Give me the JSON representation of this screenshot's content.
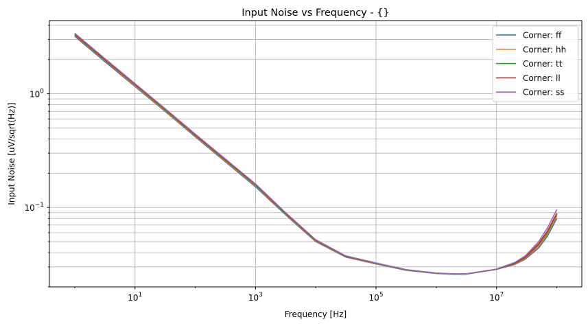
{
  "chart_data": {
    "type": "line",
    "title": "Input Noise vs Frequency - {}",
    "xlabel": "Frequency [Hz]",
    "ylabel": "Input Noise [uV/sqrt(Hz)]",
    "xscale": "log",
    "yscale": "log",
    "xlim": [
      0.38,
      260000000.0
    ],
    "ylim": [
      0.02,
      4.4
    ],
    "grid": "x major, y major and minor",
    "legend_position": "top-right",
    "x_tick_labels": [
      {
        "value": 10,
        "base": "10",
        "exp": "1"
      },
      {
        "value": 1000,
        "base": "10",
        "exp": "3"
      },
      {
        "value": 100000,
        "base": "10",
        "exp": "5"
      },
      {
        "value": 10000000,
        "base": "10",
        "exp": "7"
      }
    ],
    "y_tick_labels": [
      {
        "value": 1,
        "base": "10",
        "exp": "0"
      },
      {
        "value": 0.1,
        "base": "10",
        "exp": "−1"
      }
    ],
    "x": [
      1,
      3.16,
      10,
      31.6,
      100,
      316,
      1000,
      3160,
      10000,
      31600,
      100000,
      316000,
      1000000,
      2000000,
      3160000,
      10000000,
      20000000,
      30000000,
      50000000,
      70000000,
      100000000
    ],
    "series": [
      {
        "name": "Corner: ff",
        "color": "#1f77b4",
        "values": [
          3.2,
          1.92,
          1.16,
          0.7,
          0.418,
          0.252,
          0.152,
          0.086,
          0.05,
          0.0365,
          0.0318,
          0.028,
          0.0262,
          0.0258,
          0.0259,
          0.0285,
          0.0315,
          0.035,
          0.044,
          0.056,
          0.08
        ]
      },
      {
        "name": "Corner: hh",
        "color": "#ff7f0e",
        "values": [
          3.26,
          1.96,
          1.18,
          0.71,
          0.425,
          0.256,
          0.155,
          0.087,
          0.0505,
          0.0368,
          0.032,
          0.0281,
          0.0263,
          0.0259,
          0.026,
          0.0285,
          0.0318,
          0.0355,
          0.0455,
          0.058,
          0.084
        ]
      },
      {
        "name": "Corner: tt",
        "color": "#2ca02c",
        "values": [
          3.3,
          1.98,
          1.2,
          0.72,
          0.43,
          0.26,
          0.157,
          0.088,
          0.051,
          0.037,
          0.0322,
          0.0282,
          0.0264,
          0.0259,
          0.026,
          0.0285,
          0.032,
          0.036,
          0.047,
          0.06,
          0.087
        ]
      },
      {
        "name": "Corner: ll",
        "color": "#d62728",
        "values": [
          3.34,
          2.0,
          1.21,
          0.73,
          0.435,
          0.263,
          0.159,
          0.089,
          0.0515,
          0.0372,
          0.0323,
          0.0283,
          0.0264,
          0.026,
          0.0261,
          0.0286,
          0.0323,
          0.0365,
          0.048,
          0.062,
          0.089
        ]
      },
      {
        "name": "Corner: ss",
        "color": "#9467bd",
        "values": [
          3.4,
          2.04,
          1.23,
          0.74,
          0.442,
          0.267,
          0.161,
          0.09,
          0.052,
          0.0375,
          0.0325,
          0.0284,
          0.0265,
          0.026,
          0.0261,
          0.0287,
          0.0328,
          0.0375,
          0.05,
          0.066,
          0.096
        ]
      }
    ]
  }
}
